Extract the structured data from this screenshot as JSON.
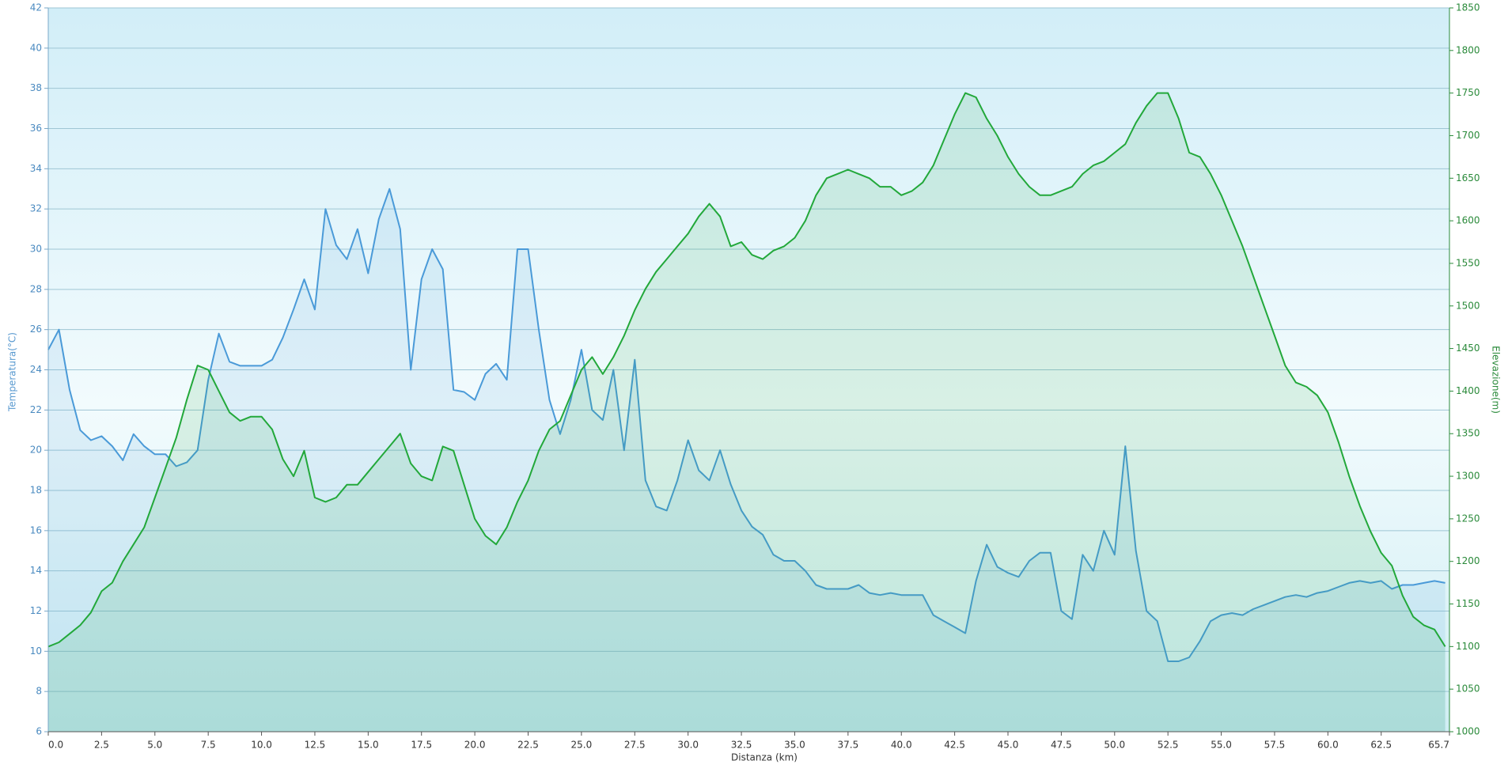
{
  "chart_data": {
    "type": "line",
    "x_label": "Distanza  (km)",
    "y_label": "Temperatura(°C)",
    "y2_label": "Elevazione(m)",
    "xlim": [
      0,
      65.7
    ],
    "xticks": [
      {
        "value": 0,
        "label": "0.0"
      },
      2.5,
      {
        "value": 5,
        "label": "5.0"
      },
      7.5,
      {
        "value": 10,
        "label": "10.0"
      },
      12.5,
      {
        "value": 15,
        "label": "15.0"
      },
      17.5,
      {
        "value": 20,
        "label": "20.0"
      },
      22.5,
      {
        "value": 25,
        "label": "25.0"
      },
      27.5,
      {
        "value": 30,
        "label": "30.0"
      },
      32.5,
      {
        "value": 35,
        "label": "35.0"
      },
      37.5,
      {
        "value": 40,
        "label": "40.0"
      },
      42.5,
      {
        "value": 45,
        "label": "45.0"
      },
      47.5,
      {
        "value": 50,
        "label": "50.0"
      },
      52.5,
      {
        "value": 55,
        "label": "55.0"
      },
      57.5,
      {
        "value": 60,
        "label": "60.0"
      },
      62.5,
      65.7
    ],
    "ylim": [
      6,
      42
    ],
    "yticks": [
      6,
      8,
      10,
      12,
      14,
      16,
      18,
      20,
      22,
      24,
      26,
      28,
      30,
      32,
      34,
      36,
      38,
      40,
      42
    ],
    "y2lim": [
      1000,
      1850
    ],
    "y2ticks": [
      1000,
      1050,
      1100,
      1150,
      1200,
      1250,
      1300,
      1350,
      1400,
      1450,
      1500,
      1550,
      1600,
      1650,
      1700,
      1750,
      1800,
      1850
    ],
    "grid": true,
    "x": [
      0,
      0.5,
      1,
      1.5,
      2,
      2.5,
      3,
      3.5,
      4,
      4.5,
      5,
      5.5,
      6,
      6.5,
      7,
      7.5,
      8,
      8.5,
      9,
      9.5,
      10,
      10.5,
      11,
      11.5,
      12,
      12.5,
      13,
      13.5,
      14,
      14.5,
      15,
      15.5,
      16,
      16.5,
      17,
      17.5,
      18,
      18.5,
      19,
      19.5,
      20,
      20.5,
      21,
      21.5,
      22,
      22.5,
      23,
      23.5,
      24,
      24.5,
      25,
      25.5,
      26,
      26.5,
      27,
      27.5,
      28,
      28.5,
      29,
      29.5,
      30,
      30.5,
      31,
      31.5,
      32,
      32.5,
      33,
      33.5,
      34,
      34.5,
      35,
      35.5,
      36,
      36.5,
      37,
      37.5,
      38,
      38.5,
      39,
      39.5,
      40,
      40.5,
      41,
      41.5,
      42,
      42.5,
      43,
      43.5,
      44,
      44.5,
      45,
      45.5,
      46,
      46.5,
      47,
      47.5,
      48,
      48.5,
      49,
      49.5,
      50,
      50.5,
      51,
      51.5,
      52,
      52.5,
      53,
      53.5,
      54,
      54.5,
      55,
      55.5,
      56,
      56.5,
      57,
      57.5,
      58,
      58.5,
      59,
      59.5,
      60,
      60.5,
      61,
      61.5,
      62,
      62.5,
      63,
      63.5,
      64,
      64.5,
      65,
      65.5
    ],
    "series": [
      {
        "color": "#4a9ad8",
        "axis": "y",
        "values": [
          25,
          26,
          23,
          21,
          20.5,
          20.7,
          20.2,
          19.5,
          20.8,
          20.2,
          19.8,
          19.8,
          19.2,
          19.4,
          20,
          23.5,
          25.8,
          24.4,
          24.2,
          24.2,
          24.2,
          24.5,
          25.6,
          27,
          28.5,
          27,
          32,
          30.2,
          29.5,
          31,
          28.8,
          31.5,
          33,
          31,
          24,
          28.5,
          30,
          29,
          23,
          22.9,
          22.5,
          23.8,
          24.3,
          23.5,
          30,
          30,
          26,
          22.5,
          20.8,
          22.5,
          25,
          22,
          21.5,
          24,
          20,
          24.5,
          18.5,
          17.2,
          17,
          18.5,
          20.5,
          19,
          18.5,
          20,
          18.3,
          17,
          16.2,
          15.8,
          14.8,
          14.5,
          14.5,
          14,
          13.3,
          13.1,
          13.1,
          13.1,
          13.3,
          12.9,
          12.8,
          12.9,
          12.8,
          12.8,
          12.8,
          11.8,
          11.5,
          11.2,
          10.9,
          13.5,
          15.3,
          14.2,
          13.9,
          13.7,
          14.5,
          14.9,
          14.9,
          12,
          11.6,
          14.8,
          14,
          16,
          14.8,
          20.2,
          15,
          12,
          11.5,
          9.5,
          9.5,
          9.7,
          10.5,
          11.5,
          11.8,
          11.9,
          11.8,
          12.1,
          12.3,
          12.5,
          12.7,
          12.8,
          12.7,
          12.9,
          13,
          13.2,
          13.4,
          13.5,
          13.4,
          13.5,
          13.1,
          13.3,
          13.3,
          13.4,
          13.5,
          13.4
        ]
      },
      {
        "color": "#22a83a",
        "axis": "y2",
        "values": [
          1100,
          1105,
          1115,
          1125,
          1140,
          1165,
          1175,
          1200,
          1220,
          1240,
          1275,
          1310,
          1345,
          1390,
          1430,
          1425,
          1400,
          1375,
          1365,
          1370,
          1370,
          1355,
          1320,
          1300,
          1330,
          1275,
          1270,
          1275,
          1290,
          1290,
          1305,
          1320,
          1335,
          1350,
          1315,
          1300,
          1295,
          1335,
          1330,
          1290,
          1250,
          1230,
          1220,
          1240,
          1270,
          1295,
          1330,
          1355,
          1365,
          1395,
          1425,
          1440,
          1420,
          1440,
          1465,
          1495,
          1520,
          1540,
          1555,
          1570,
          1585,
          1605,
          1620,
          1605,
          1570,
          1575,
          1560,
          1555,
          1565,
          1570,
          1580,
          1600,
          1630,
          1650,
          1655,
          1660,
          1655,
          1650,
          1640,
          1640,
          1630,
          1635,
          1645,
          1665,
          1695,
          1725,
          1750,
          1745,
          1720,
          1700,
          1675,
          1655,
          1640,
          1630,
          1630,
          1635,
          1640,
          1655,
          1665,
          1670,
          1680,
          1690,
          1715,
          1735,
          1750,
          1750,
          1720,
          1680,
          1675,
          1655,
          1630,
          1600,
          1570,
          1535,
          1500,
          1465,
          1430,
          1410,
          1405,
          1395,
          1375,
          1340,
          1300,
          1265,
          1235,
          1210,
          1195,
          1160,
          1135,
          1125,
          1120,
          1100
        ]
      }
    ]
  }
}
